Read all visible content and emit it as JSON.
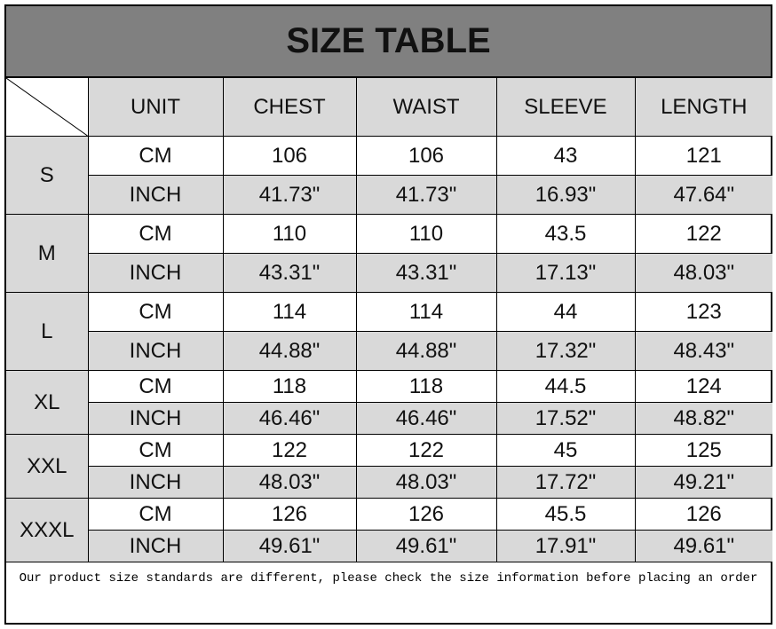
{
  "title": "SIZE TABLE",
  "headers": [
    "UNIT",
    "CHEST",
    "WAIST",
    "SLEEVE",
    "LENGTH"
  ],
  "rows": [
    {
      "size": "S",
      "cm": [
        "CM",
        "106",
        "106",
        "43",
        "121"
      ],
      "inch": [
        "INCH",
        "41.73\"",
        "41.73\"",
        "16.93\"",
        "47.64\""
      ]
    },
    {
      "size": "M",
      "cm": [
        "CM",
        "110",
        "110",
        "43.5",
        "122"
      ],
      "inch": [
        "INCH",
        "43.31\"",
        "43.31\"",
        "17.13\"",
        "48.03\""
      ]
    },
    {
      "size": "L",
      "cm": [
        "CM",
        "114",
        "114",
        "44",
        "123"
      ],
      "inch": [
        "INCH",
        "44.88\"",
        "44.88\"",
        "17.32\"",
        "48.43\""
      ]
    },
    {
      "size": "XL",
      "cm": [
        "CM",
        "118",
        "118",
        "44.5",
        "124"
      ],
      "inch": [
        "INCH",
        "46.46\"",
        "46.46\"",
        "17.52\"",
        "48.82\""
      ]
    },
    {
      "size": "XXL",
      "cm": [
        "CM",
        "122",
        "122",
        "45",
        "125"
      ],
      "inch": [
        "INCH",
        "48.03\"",
        "48.03\"",
        "17.72\"",
        "49.21\""
      ]
    },
    {
      "size": "XXXL",
      "cm": [
        "CM",
        "126",
        "126",
        "45.5",
        "126"
      ],
      "inch": [
        "INCH",
        "49.61\"",
        "49.61\"",
        "17.91\"",
        "49.61\""
      ]
    }
  ],
  "note": "Our product size standards are different, please check the size information before placing an order"
}
